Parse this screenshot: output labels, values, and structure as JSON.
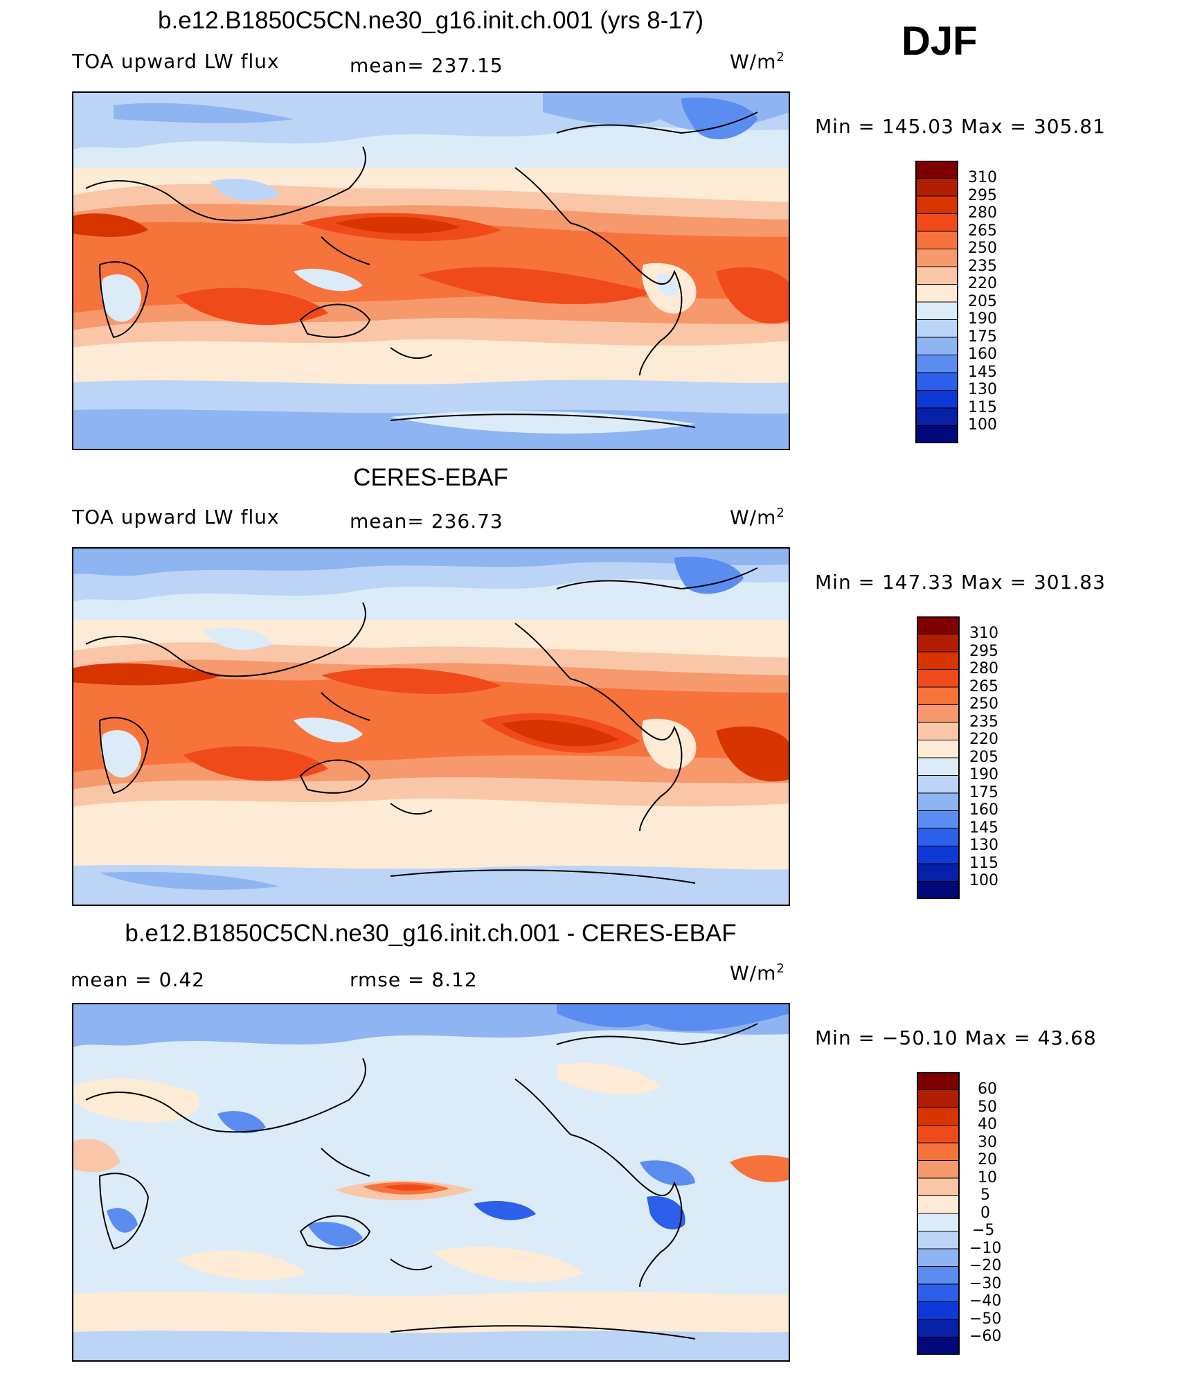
{
  "season": "DJF",
  "units": {
    "base": "W/m",
    "exp": "2"
  },
  "panels": [
    {
      "title": "b.e12.B1850C5CN.ne30_g16.init.ch.001 (yrs 8-17)",
      "left_label": "TOA upward LW flux",
      "mid_label": "mean=  237.15",
      "minmax": "Min  =  145.03  Max  =  305.81"
    },
    {
      "title": "CERES-EBAF",
      "left_label": "TOA upward LW flux",
      "mid_label": "mean=  236.73",
      "minmax": "Min  =  147.33  Max  =  301.83"
    },
    {
      "title": "b.e12.B1850C5CN.ne30_g16.init.ch.001 - CERES-EBAF",
      "left_label": "mean =     0.42",
      "mid_label": "rmse =     8.12",
      "minmax": "Min  =  −50.10  Max  =     43.68"
    }
  ],
  "colorbars": {
    "flux_levels": [
      "310",
      "295",
      "280",
      "265",
      "250",
      "235",
      "220",
      "205",
      "190",
      "175",
      "160",
      "145",
      "130",
      "115",
      "100"
    ],
    "diff_levels": [
      "60",
      "50",
      "40",
      "30",
      "20",
      "10",
      "5",
      "0",
      "−5",
      "−10",
      "−20",
      "−30",
      "−40",
      "−50",
      "−60"
    ],
    "colors": [
      "#7f0000",
      "#b21e00",
      "#d73400",
      "#f04a1a",
      "#f7733c",
      "#f69a6e",
      "#f9c7a8",
      "#fdebd6",
      "#dcebf8",
      "#bcd4f5",
      "#8fb4f2",
      "#5b8cf0",
      "#2c5fea",
      "#0d3ad6",
      "#0620a8",
      "#00087a"
    ]
  },
  "chart_data": [
    {
      "type": "heatmap",
      "title": "b.e12.B1850C5CN.ne30_g16.init.ch.001 (yrs 8-17)",
      "variable": "TOA upward LW flux",
      "units": "W/m2",
      "mean": 237.15,
      "min": 145.03,
      "max": 305.81,
      "contour_levels": [
        100,
        115,
        130,
        145,
        160,
        175,
        190,
        205,
        220,
        235,
        250,
        265,
        280,
        295,
        310
      ]
    },
    {
      "type": "heatmap",
      "title": "CERES-EBAF",
      "variable": "TOA upward LW flux",
      "units": "W/m2",
      "mean": 236.73,
      "min": 147.33,
      "max": 301.83,
      "contour_levels": [
        100,
        115,
        130,
        145,
        160,
        175,
        190,
        205,
        220,
        235,
        250,
        265,
        280,
        295,
        310
      ]
    },
    {
      "type": "heatmap",
      "title": "b.e12.B1850C5CN.ne30_g16.init.ch.001 - CERES-EBAF",
      "units": "W/m2",
      "mean": 0.42,
      "rmse": 8.12,
      "min": -50.1,
      "max": 43.68,
      "contour_levels": [
        -60,
        -50,
        -40,
        -30,
        -20,
        -10,
        -5,
        0,
        5,
        10,
        20,
        30,
        40,
        50,
        60
      ]
    }
  ]
}
